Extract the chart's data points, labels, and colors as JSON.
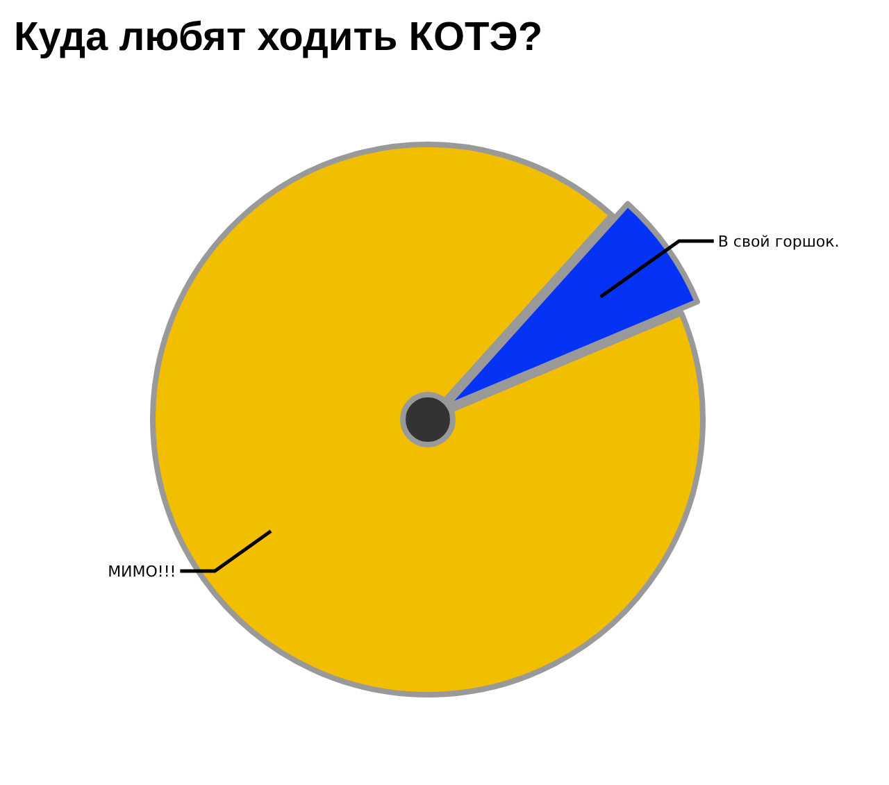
{
  "chart_data": {
    "type": "pie",
    "title": "Куда любят ходить КОТЭ?",
    "categories": [
      "В свой горшок.",
      "МИМО!!!"
    ],
    "values": [
      7,
      93
    ],
    "colors": [
      "#0433f5",
      "#f2bf00"
    ]
  }
}
